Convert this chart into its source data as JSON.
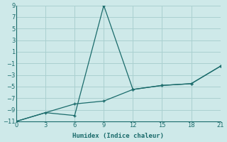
{
  "xlabel": "Humidex (Indice chaleur)",
  "xlim": [
    0,
    21
  ],
  "ylim": [
    -11,
    9
  ],
  "xticks": [
    0,
    3,
    6,
    9,
    12,
    15,
    18,
    21
  ],
  "yticks": [
    -11,
    -9,
    -7,
    -5,
    -3,
    -1,
    1,
    3,
    5,
    7,
    9
  ],
  "background_color": "#cee9e9",
  "grid_color": "#aad0d0",
  "line_color": "#1a6b6b",
  "series1_x": [
    0,
    3,
    6,
    9,
    12,
    15,
    18,
    21
  ],
  "series1_y": [
    -11,
    -9.5,
    -10,
    9,
    -5.5,
    -4.8,
    -4.5,
    -1.5
  ],
  "series2_x": [
    0,
    6,
    9,
    12,
    15,
    18,
    21
  ],
  "series2_y": [
    -11,
    -8,
    -7.5,
    -5.5,
    -4.8,
    -4.5,
    -1.5
  ]
}
